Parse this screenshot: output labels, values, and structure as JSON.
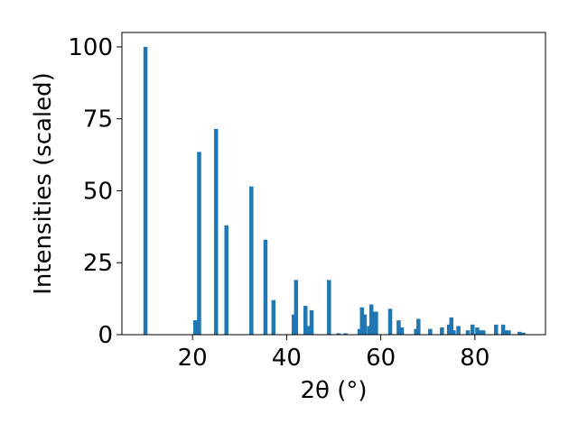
{
  "chart_data": {
    "type": "bar",
    "xlabel": "2θ (°)",
    "ylabel": "Intensities (scaled)",
    "xlim": [
      5,
      95
    ],
    "ylim": [
      0,
      105
    ],
    "xticks": [
      20,
      40,
      60,
      80
    ],
    "yticks": [
      0,
      25,
      50,
      75,
      100
    ],
    "bar_color": "#1f77b4",
    "grid": false,
    "legend": "none",
    "x": [
      10.0,
      20.6,
      21.4,
      25.0,
      27.2,
      32.5,
      35.5,
      37.2,
      41.5,
      42.0,
      44.0,
      44.8,
      45.3,
      49.0,
      51.0,
      52.5,
      55.5,
      56.0,
      56.6,
      57.5,
      58.0,
      58.6,
      59.0,
      62.0,
      63.8,
      64.5,
      67.5,
      68.0,
      70.5,
      73.0,
      74.5,
      75.0,
      75.5,
      76.5,
      78.5,
      79.5,
      80.5,
      81.2,
      81.8,
      84.5,
      86.0,
      86.6,
      87.2,
      89.5,
      90.3
    ],
    "values": [
      100,
      5,
      63.5,
      71.5,
      38,
      51.5,
      33,
      12,
      7,
      19,
      10,
      3,
      8.5,
      19,
      0.5,
      0.5,
      2,
      9.5,
      7,
      3,
      10.5,
      8,
      8,
      9,
      5,
      2.5,
      2,
      5.5,
      2,
      2.5,
      3.5,
      6,
      1.5,
      3,
      1.5,
      3.5,
      2.5,
      1.5,
      1.5,
      3.5,
      3.5,
      1.5,
      1.5,
      1,
      0.7
    ]
  }
}
